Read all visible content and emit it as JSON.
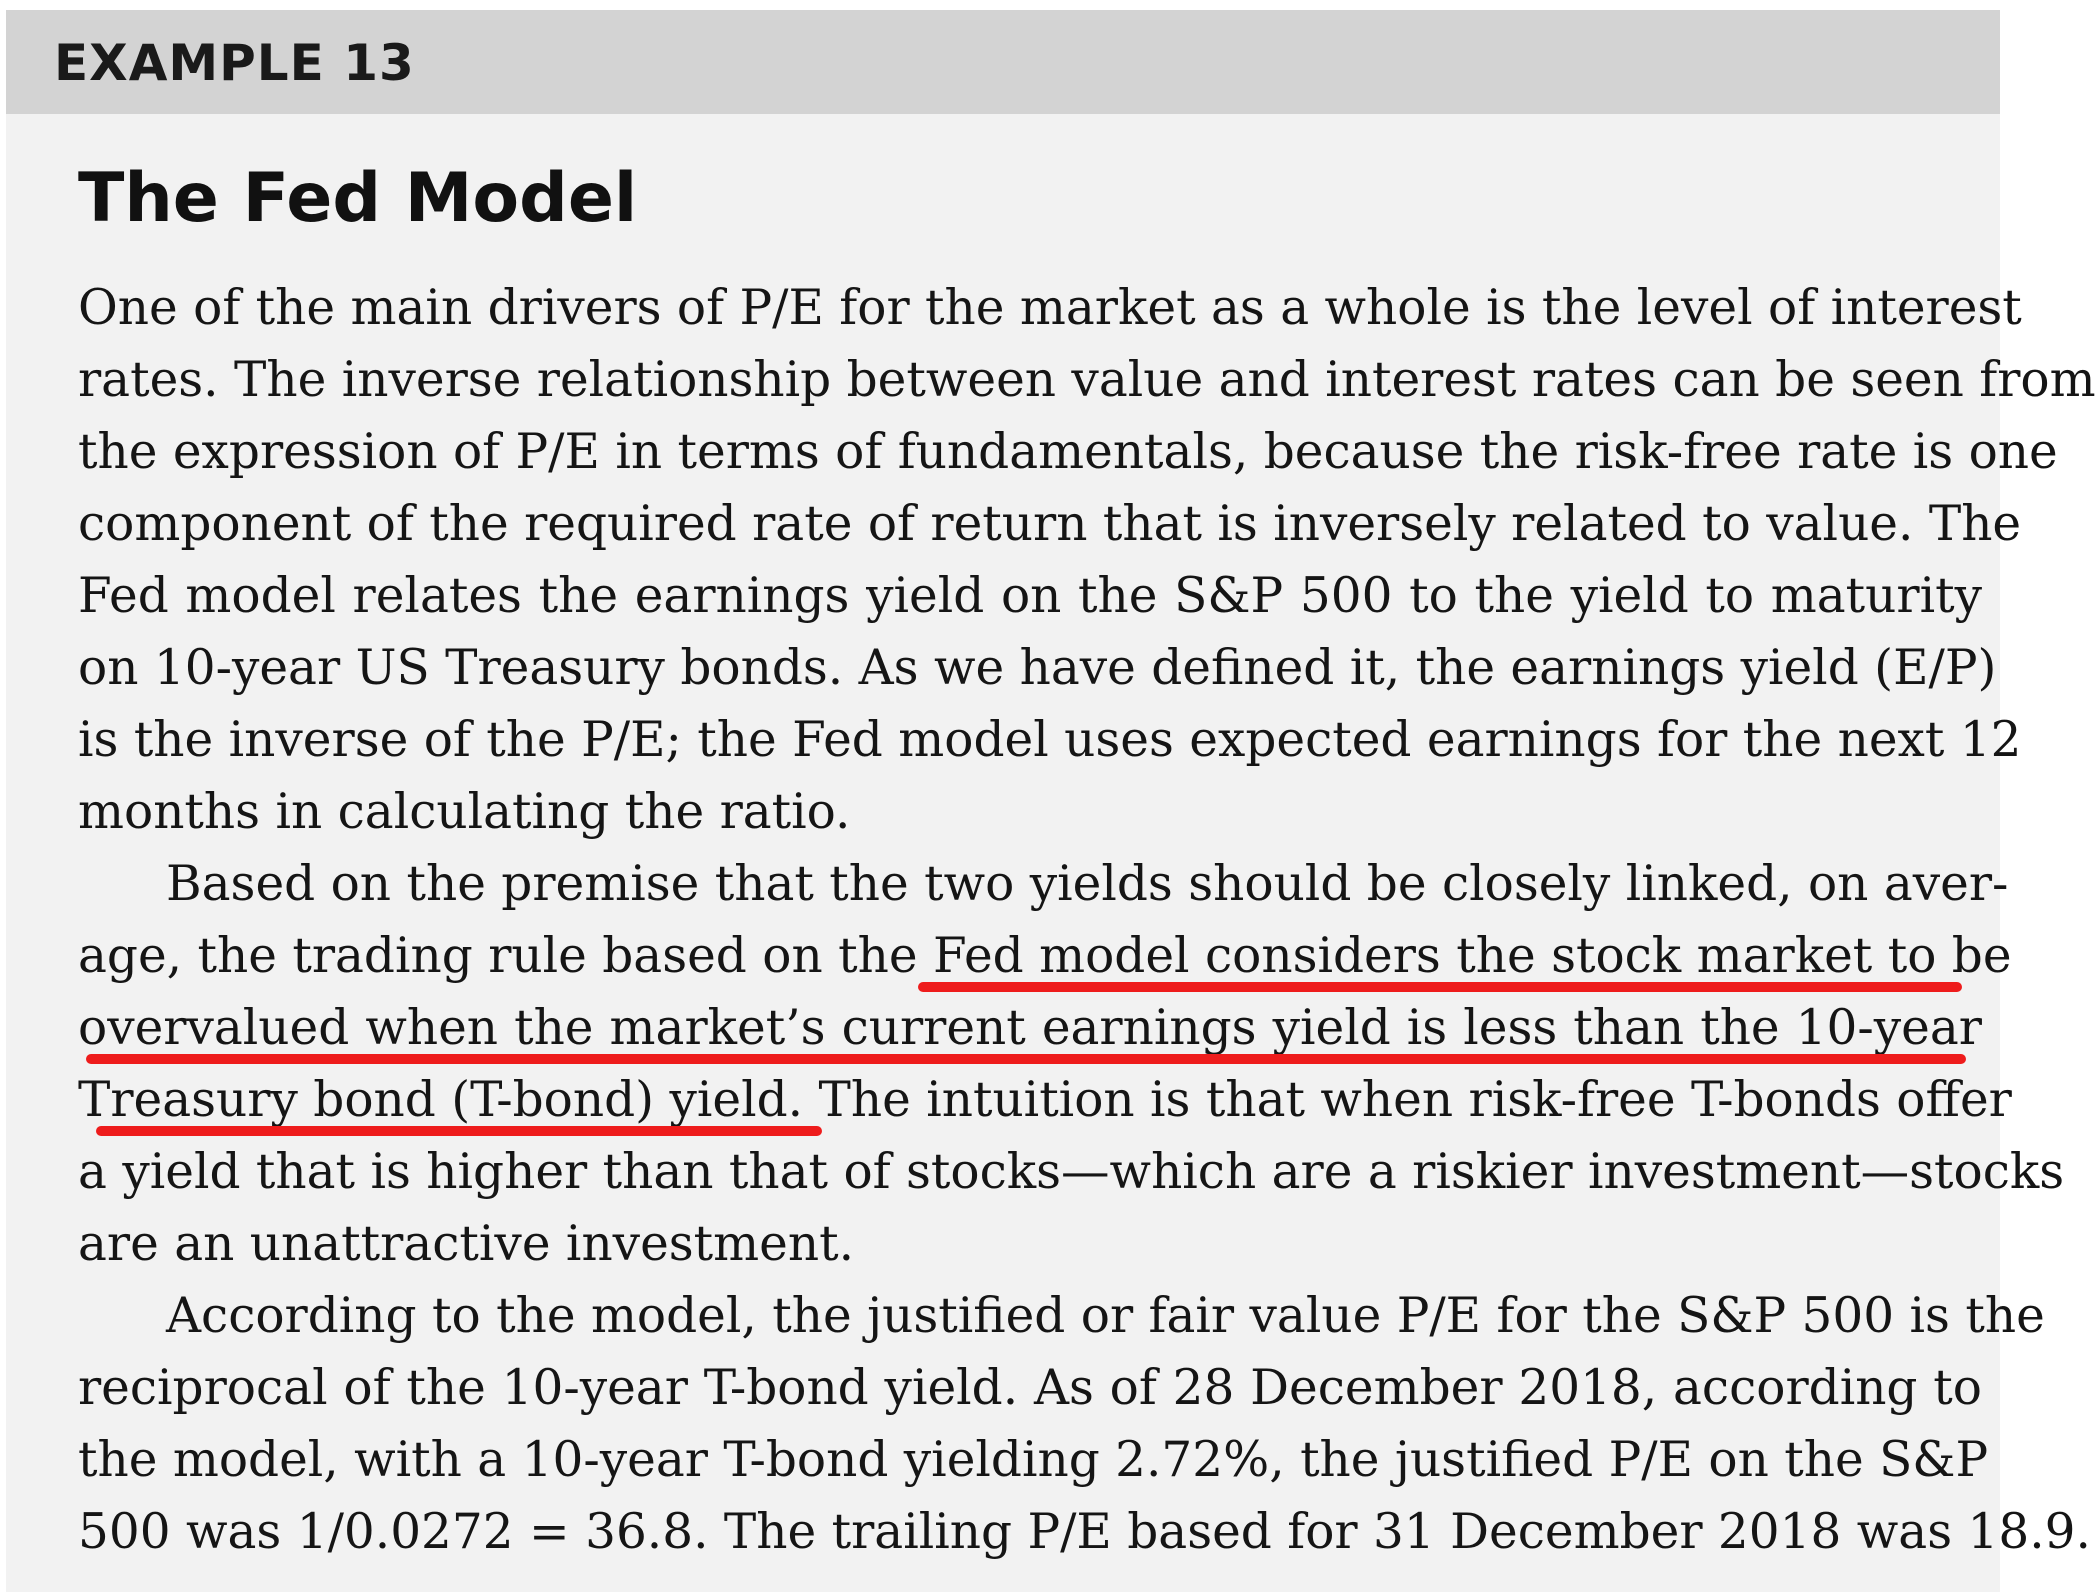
{
  "example": {
    "label": "EXAMPLE 13"
  },
  "section": {
    "title": "The Fed Model"
  },
  "body": {
    "lines": [
      "One of the main drivers of P/E for the market as a whole is the level of interest",
      "rates. The inverse relationship between value and interest rates can be seen from",
      "the expression of P/E in terms of fundamentals, because the risk-free rate is one",
      "component of the required rate of return that is inversely related to value. The",
      "Fed model relates the earnings yield on the S&P 500 to the yield to maturity",
      "on 10-year US Treasury bonds. As we have defined it, the earnings yield (E/P)",
      "is the inverse of the P/E; the Fed model uses expected earnings for the next 12",
      "months in calculating the ratio.",
      "Based on the premise that the two yields should be closely linked, on aver-",
      "age, the trading rule based on the Fed model considers the stock market to be",
      "overvalued when the market’s current earnings yield is less than the 10-year",
      "Treasury bond (T-bond) yield. The intuition is that when risk-free T-bonds offer",
      "a yield that is higher than that of stocks—which are a riskier investment—stocks",
      "are an unattractive investment.",
      "According to the model, the justified or fair value P/E for the S&P 500 is the",
      "reciprocal of the 10-year T-bond yield. As of 28 December 2018, according to",
      "the model, with a 10-year T-bond yielding 2.72%, the justified P/E on the S&P",
      "500 was 1/0.0272 = 36.8. The trailing P/E based for 31 December 2018 was 18.9."
    ]
  },
  "annotations": {
    "underline_color": "#ee1c1c"
  }
}
